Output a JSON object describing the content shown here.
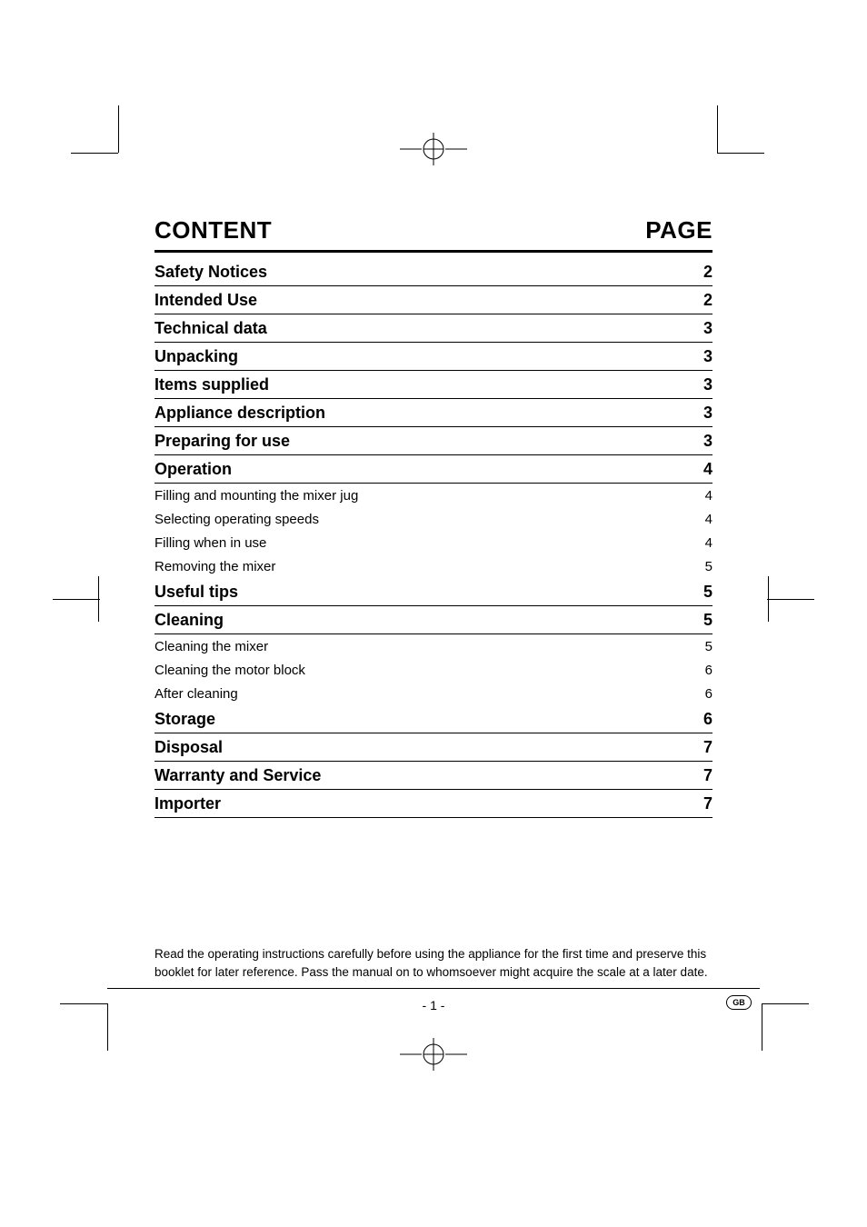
{
  "colors": {
    "text": "#000000",
    "background": "#ffffff",
    "rule": "#000000"
  },
  "typography": {
    "header_fontsize_pt": 20,
    "section_fontsize_pt": 14,
    "sub_fontsize_pt": 11,
    "footer_fontsize_pt": 10,
    "font_family": "Futura / Century Gothic style sans-serif"
  },
  "header": {
    "left": "CONTENT",
    "right": "PAGE"
  },
  "toc": [
    {
      "title": "Safety Notices",
      "page": "2",
      "level": 1
    },
    {
      "title": "Intended Use",
      "page": "2",
      "level": 1
    },
    {
      "title": "Technical data",
      "page": "3",
      "level": 1
    },
    {
      "title": "Unpacking",
      "page": "3",
      "level": 1
    },
    {
      "title": "Items supplied",
      "page": "3",
      "level": 1
    },
    {
      "title": "Appliance description",
      "page": "3",
      "level": 1
    },
    {
      "title": "Preparing for use",
      "page": "3",
      "level": 1
    },
    {
      "title": "Operation",
      "page": "4",
      "level": 1
    },
    {
      "title": "Filling and mounting the mixer jug",
      "page": "4",
      "level": 2
    },
    {
      "title": "Selecting operating speeds",
      "page": "4",
      "level": 2
    },
    {
      "title": "Filling when in use",
      "page": "4",
      "level": 2
    },
    {
      "title": "Removing the mixer",
      "page": "5",
      "level": 2
    },
    {
      "title": "Useful tips",
      "page": "5",
      "level": 1
    },
    {
      "title": "Cleaning",
      "page": "5",
      "level": 1
    },
    {
      "title": "Cleaning the mixer",
      "page": "5",
      "level": 2
    },
    {
      "title": "Cleaning the motor block",
      "page": "6",
      "level": 2
    },
    {
      "title": "After cleaning",
      "page": "6",
      "level": 2
    },
    {
      "title": "Storage",
      "page": "6",
      "level": 1
    },
    {
      "title": "Disposal",
      "page": "7",
      "level": 1
    },
    {
      "title": "Warranty and Service",
      "page": "7",
      "level": 1
    },
    {
      "title": "Importer",
      "page": "7",
      "level": 1
    }
  ],
  "footer_note": "Read the operating instructions carefully before using the appliance for the first time and preserve this booklet for later reference. Pass the manual on to whomsoever might acquire the scale at a later date.",
  "page_number": "- 1 -",
  "lang_badge": "GB"
}
